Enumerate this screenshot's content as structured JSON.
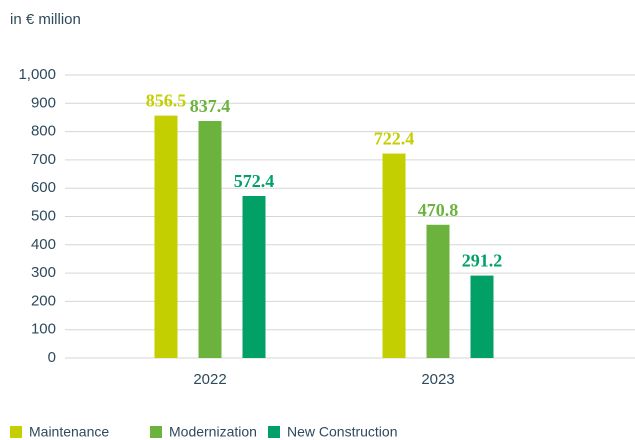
{
  "chart_data": {
    "type": "bar",
    "y_axis_label": "in € million",
    "categories": [
      "2022",
      "2023"
    ],
    "series": [
      {
        "name": "Maintenance",
        "color": "#c3cf00",
        "values": [
          856.5,
          722.4
        ]
      },
      {
        "name": "Modernization",
        "color": "#6cb33e",
        "values": [
          837.4,
          470.8
        ]
      },
      {
        "name": "New Construction",
        "color": "#00a067",
        "values": [
          572.4,
          291.2
        ]
      }
    ],
    "ylim": [
      0,
      1000
    ],
    "yticks": [
      0,
      100,
      200,
      300,
      400,
      500,
      600,
      700,
      800,
      900,
      {
        "value": 1000,
        "label": "1,000"
      }
    ],
    "grid": true,
    "legend": "bottom"
  }
}
